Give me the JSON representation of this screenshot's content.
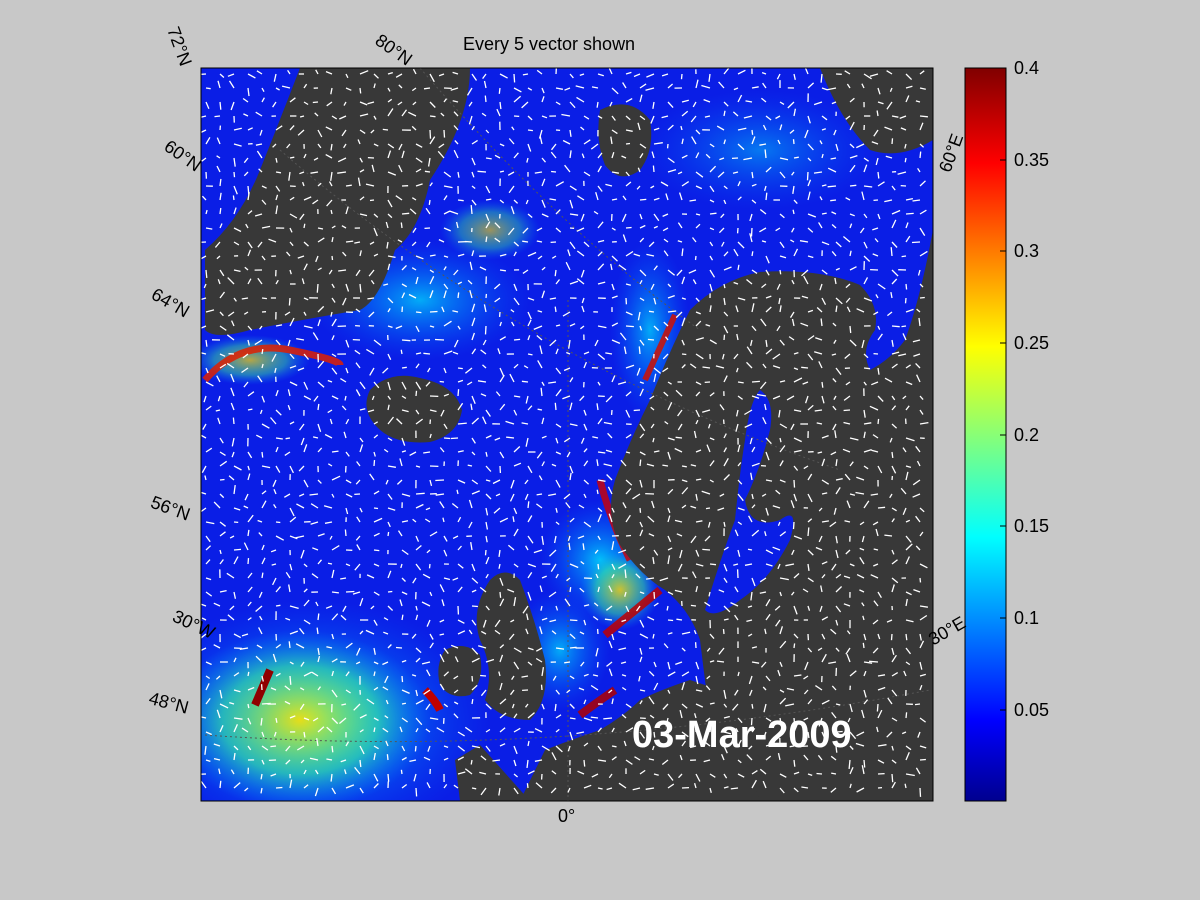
{
  "title": "Every 5 vector shown",
  "date": "03-Mar-2009",
  "lat_labels": [
    "72°N",
    "60°N",
    "64°N",
    "56°N",
    "48°N"
  ],
  "lon_labels": [
    "80°N",
    "60°E",
    "30°E",
    "30°W",
    "0°"
  ],
  "colorbar": {
    "min": 0,
    "max": 0.4,
    "ticks": [
      "0.4",
      "0.35",
      "0.3",
      "0.25",
      "0.2",
      "0.15",
      "0.1",
      "0.05"
    ],
    "colormap": "jet"
  },
  "colors": {
    "background": "#c8c8c8",
    "land": "#383838",
    "ocean_low": "#0a1ee6",
    "ocean_high": "#ff0000",
    "vectors": "#ffffff"
  }
}
